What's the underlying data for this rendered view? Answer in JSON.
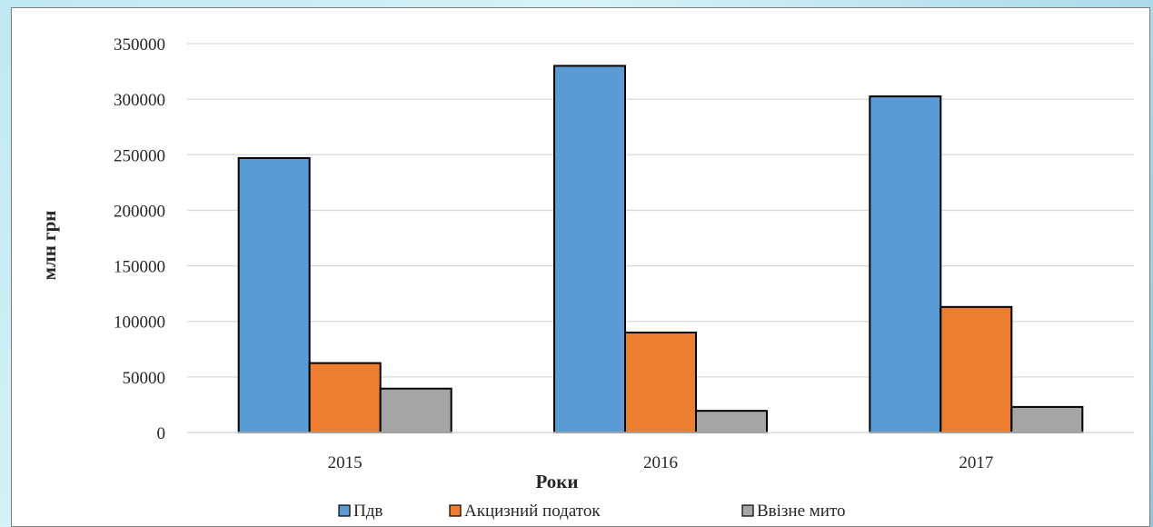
{
  "chart_data": {
    "type": "bar",
    "categories": [
      "2015",
      "2016",
      "2017"
    ],
    "series": [
      {
        "name": "Пдв",
        "color": "#5b9bd5",
        "values": [
          247000,
          330000,
          302500
        ]
      },
      {
        "name": "Акцизний податок",
        "color": "#ed7d31",
        "values": [
          62500,
          90000,
          113000
        ]
      },
      {
        "name": "Ввізне мито",
        "color": "#a5a5a5",
        "values": [
          39500,
          19500,
          23000
        ]
      }
    ],
    "xlabel": "Роки",
    "ylabel": "млн грн",
    "ylim": [
      0,
      350000
    ],
    "yticks": [
      "0",
      "50000",
      "100000",
      "150000",
      "200000",
      "250000",
      "300000",
      "350000"
    ],
    "grid": true,
    "legend_position": "bottom"
  }
}
